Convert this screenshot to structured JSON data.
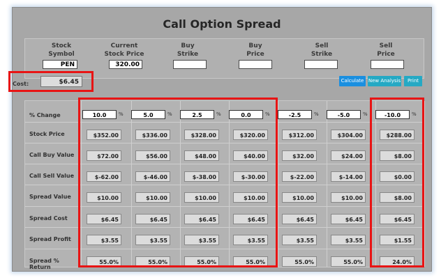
{
  "title": "Call Option Spread",
  "inputs": [
    {
      "label1": "Stock",
      "label2": "Symbol",
      "value": "PEN"
    },
    {
      "label1": "Current",
      "label2": "Stock Price",
      "value": "320.00"
    },
    {
      "label1": "Buy",
      "label2": "Strike",
      "value": ""
    },
    {
      "label1": "Buy",
      "label2": "Price",
      "value": ""
    },
    {
      "label1": "Sell",
      "label2": "Strike",
      "value": ""
    },
    {
      "label1": "Sell",
      "label2": "Price",
      "value": ""
    }
  ],
  "cost": {
    "label": "Cost:",
    "value": "$6.45"
  },
  "buttons": {
    "calculate": "Calculate",
    "new_analysis": "New Analysis",
    "print": "Print"
  },
  "colors": {
    "button": "#1a8fe0",
    "button_alt": "#25a9c4",
    "highlight": "#e81414"
  },
  "row_labels": [
    "% Change",
    "Stock Price",
    "Call Buy Value",
    "Call Sell Value",
    "Spread Value",
    "Spread Cost",
    "Spread Profit",
    "Spread % Return"
  ],
  "pct_symbol": "%",
  "columns": [
    {
      "change": "10.0",
      "vals": [
        "$352.00",
        "$72.00",
        "$-62.00",
        "$10.00",
        "$6.45",
        "$3.55",
        "55.0%"
      ]
    },
    {
      "change": "5.0",
      "vals": [
        "$336.00",
        "$56.00",
        "$-46.00",
        "$10.00",
        "$6.45",
        "$3.55",
        "55.0%"
      ]
    },
    {
      "change": "2.5",
      "vals": [
        "$328.00",
        "$48.00",
        "$-38.00",
        "$10.00",
        "$6.45",
        "$3.55",
        "55.0%"
      ]
    },
    {
      "change": "0.0",
      "vals": [
        "$320.00",
        "$40.00",
        "$-30.00",
        "$10.00",
        "$6.45",
        "$3.55",
        "55.0%"
      ]
    },
    {
      "change": "-2.5",
      "vals": [
        "$312.00",
        "$32.00",
        "$-22.00",
        "$10.00",
        "$6.45",
        "$3.55",
        "55.0%"
      ]
    },
    {
      "change": "-5.0",
      "vals": [
        "$304.00",
        "$24.00",
        "$-14.00",
        "$10.00",
        "$6.45",
        "$3.55",
        "55.0%"
      ]
    },
    {
      "change": "-10.0",
      "vals": [
        "$288.00",
        "$8.00",
        "$0.00",
        "$8.00",
        "$6.45",
        "$1.55",
        "24.0%"
      ]
    }
  ]
}
